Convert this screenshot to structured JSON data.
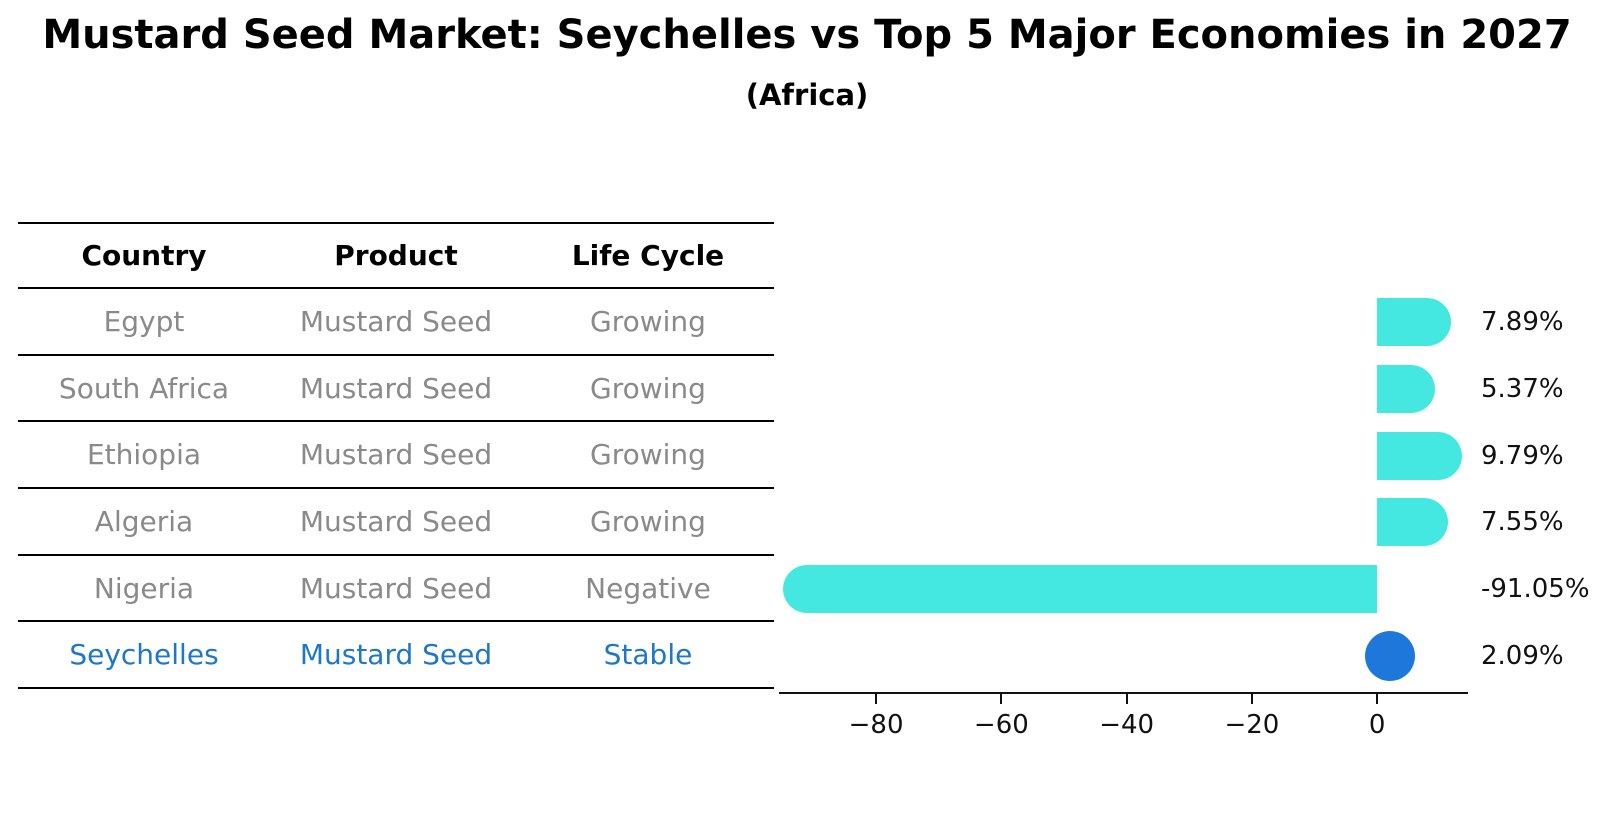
{
  "title": "Mustard Seed Market: Seychelles vs Top 5 Major Economies in 2027",
  "subtitle": "(Africa)",
  "table": {
    "headers": [
      "Country",
      "Product",
      "Life Cycle"
    ],
    "rows": [
      {
        "country": "Egypt",
        "product": "Mustard Seed",
        "life_cycle": "Growing",
        "highlight": false
      },
      {
        "country": "South Africa",
        "product": "Mustard Seed",
        "life_cycle": "Growing",
        "highlight": false
      },
      {
        "country": "Ethiopia",
        "product": "Mustard Seed",
        "life_cycle": "Growing",
        "highlight": false
      },
      {
        "country": "Algeria",
        "product": "Mustard Seed",
        "life_cycle": "Growing",
        "highlight": false
      },
      {
        "country": "Nigeria",
        "product": "Mustard Seed",
        "life_cycle": "Negative",
        "highlight": false
      },
      {
        "country": "Seychelles",
        "product": "Mustard Seed",
        "life_cycle": "Stable",
        "highlight": true
      }
    ]
  },
  "chart_data": {
    "type": "bar",
    "orientation": "horizontal",
    "title": "Mustard Seed Market: Seychelles vs Top 5 Major Economies in 2027",
    "subtitle": "(Africa)",
    "categories": [
      "Egypt",
      "South Africa",
      "Ethiopia",
      "Algeria",
      "Nigeria",
      "Seychelles"
    ],
    "values": [
      7.89,
      5.37,
      9.79,
      7.55,
      -91.05,
      2.09
    ],
    "value_labels": [
      "7.89%",
      "5.37%",
      "9.79%",
      "7.55%",
      "-91.05%",
      "2.09%"
    ],
    "marker_styles": [
      "bar",
      "bar",
      "bar",
      "bar",
      "bar",
      "dot"
    ],
    "xlabel": "",
    "ylabel": "",
    "xlim": [
      -95.5,
      14.5
    ],
    "x_ticks": [
      -80,
      -60,
      -40,
      -20,
      0
    ],
    "x_tick_labels": [
      "−80",
      "−60",
      "−40",
      "−20",
      "0"
    ],
    "grid": false,
    "legend": null
  },
  "colors": {
    "bar_cyan": "#45E8E1",
    "dot_blue": "#1E78DC",
    "highlight_text_blue": "#1F77C8",
    "table_text_gray": "#8a8a8a",
    "line_black": "#111111"
  }
}
